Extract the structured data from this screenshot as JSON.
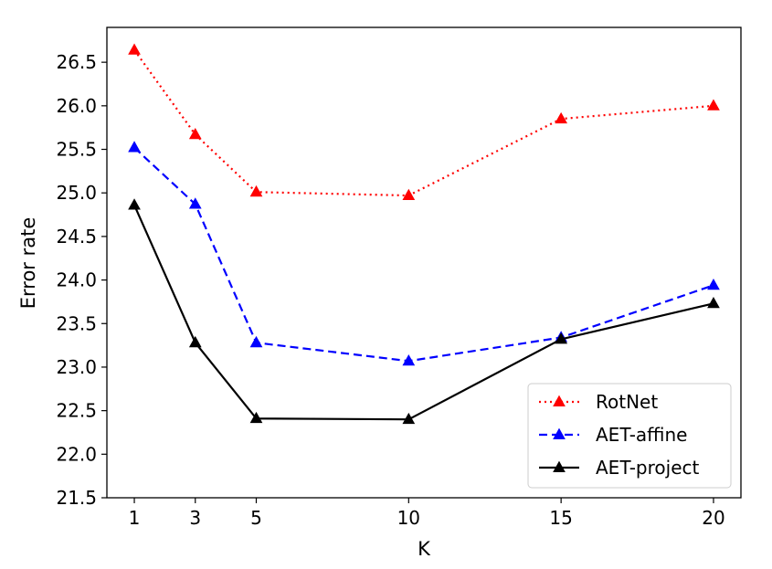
{
  "chart_data": {
    "type": "line",
    "title": "",
    "xlabel": "K",
    "ylabel": "Error rate",
    "x": [
      1,
      3,
      5,
      10,
      15,
      20
    ],
    "xticks": [
      1,
      3,
      5,
      10,
      15,
      20
    ],
    "xtick_labels": [
      "1",
      "3",
      "5",
      "10",
      "15",
      "20"
    ],
    "xlim": [
      0.1,
      20.9
    ],
    "ylim": [
      21.5,
      26.9
    ],
    "yticks": [
      21.5,
      22.0,
      22.5,
      23.0,
      23.5,
      24.0,
      24.5,
      25.0,
      25.5,
      26.0,
      26.5
    ],
    "ytick_labels": [
      "21.5",
      "22.0",
      "22.5",
      "23.0",
      "23.5",
      "24.0",
      "24.5",
      "25.0",
      "25.5",
      "26.0",
      "26.5"
    ],
    "grid": false,
    "legend_position": "bottom-right",
    "series": [
      {
        "name": "RotNet",
        "values": [
          26.64,
          25.67,
          25.01,
          24.97,
          25.85,
          26.0
        ],
        "color": "#ff0000",
        "linestyle": "dotted",
        "marker": "triangle"
      },
      {
        "name": "AET-affine",
        "values": [
          25.52,
          24.87,
          23.28,
          23.07,
          23.34,
          23.94
        ],
        "color": "#0000ff",
        "linestyle": "dashed",
        "marker": "triangle"
      },
      {
        "name": "AET-project",
        "values": [
          24.86,
          23.28,
          22.41,
          22.4,
          23.32,
          23.73
        ],
        "color": "#000000",
        "linestyle": "solid",
        "marker": "triangle"
      }
    ]
  }
}
